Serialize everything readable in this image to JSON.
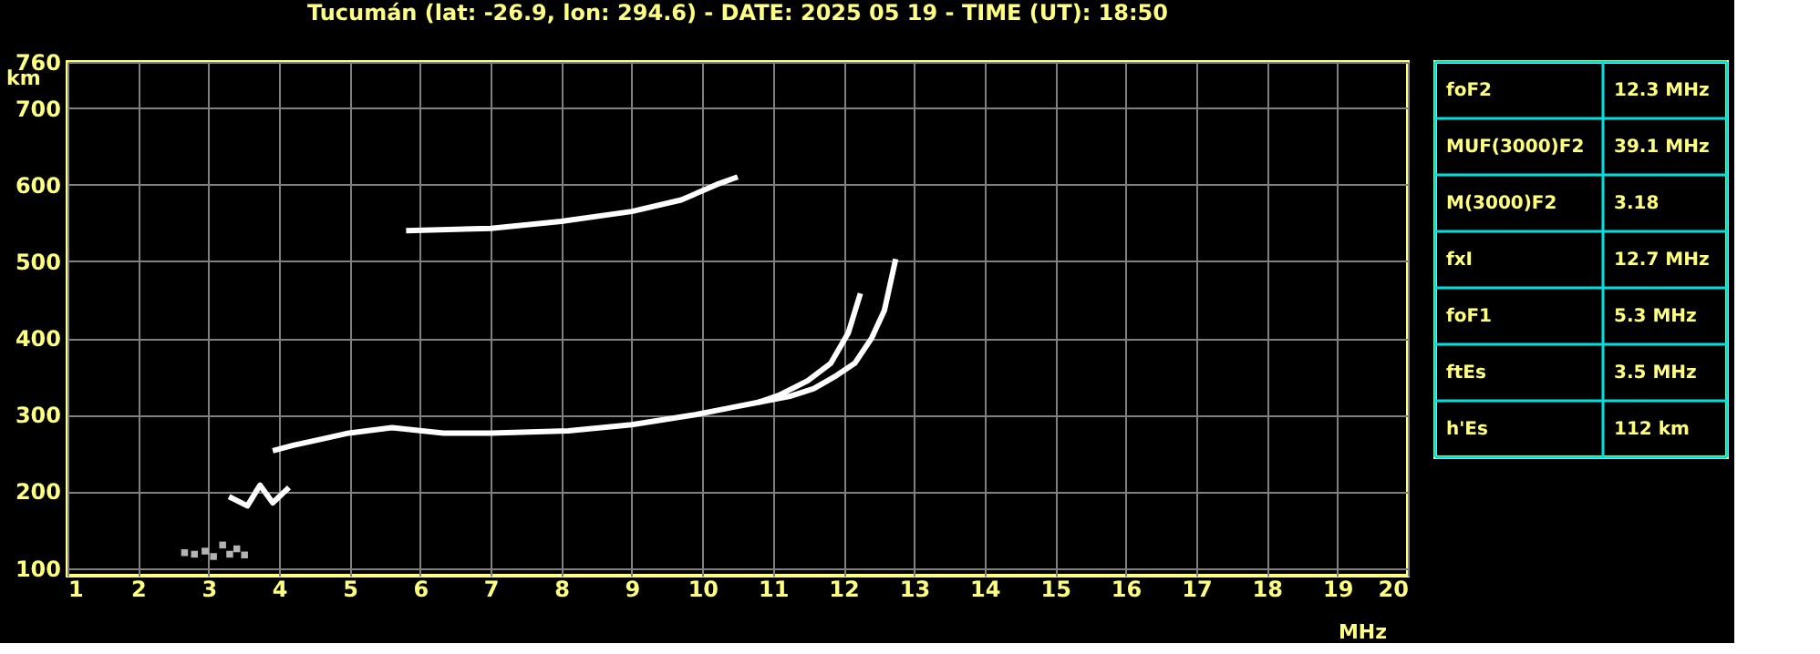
{
  "chart_data": [
    {
      "type": "line",
      "title": "Tucumán (lat: -26.9, lon: 294.6) - DATE: 2025 05 19 - TIME (UT): 18:50",
      "xlabel": "MHz",
      "ylabel": "km",
      "xlim": [
        1,
        20
      ],
      "xticks": [
        1,
        2,
        3,
        4,
        5,
        6,
        7,
        8,
        9,
        10,
        11,
        12,
        13,
        14,
        15,
        16,
        17,
        18,
        19,
        20
      ],
      "ylim": [
        90,
        760
      ],
      "yticks": [
        100,
        200,
        300,
        400,
        500,
        600,
        700,
        760
      ],
      "grid": true,
      "legend": false,
      "series": [
        {
          "type": "line",
          "color": "#ffffff",
          "x": [
            3.91,
            4.2,
            4.6,
            4.99,
            5.6,
            6.33,
            7.0,
            8.1,
            9.0,
            9.9,
            10.4,
            10.79,
            11.08,
            11.49,
            11.82,
            12.07,
            12.24
          ],
          "values": [
            253,
            260,
            268,
            276,
            283,
            276,
            276,
            279,
            287,
            300,
            309,
            316,
            325,
            344,
            367,
            407,
            458
          ]
        },
        {
          "type": "line",
          "color": "#ffffff",
          "x": [
            10.79,
            11.24,
            11.58,
            11.9,
            12.16,
            12.4,
            12.58,
            12.74
          ],
          "values": [
            316,
            324,
            334,
            351,
            367,
            400,
            436,
            503
          ]
        },
        {
          "type": "line",
          "color": "#ffffff",
          "x": [
            3.29,
            3.55,
            3.73,
            3.91,
            4.14
          ],
          "values": [
            193,
            181,
            208,
            185,
            205
          ]
        },
        {
          "type": "line",
          "color": "#ffffff",
          "x": [
            5.8,
            7.0,
            8.0,
            9.0,
            9.7,
            10.2,
            10.5
          ],
          "values": [
            540,
            543,
            552,
            565,
            580,
            600,
            610
          ]
        },
        {
          "type": "scatter",
          "color": "#ffffff",
          "marker": "square",
          "x": [
            2.66,
            2.8,
            2.95,
            3.07,
            3.2,
            3.3,
            3.4,
            3.51
          ],
          "values": [
            120,
            118,
            122,
            115,
            130,
            118,
            125,
            117
          ]
        }
      ]
    },
    {
      "type": "other",
      "annotations": [
        "foF2",
        "12.3 MHz",
        "MUF(3000)F2",
        "39.1 MHz",
        "M(3000)F2",
        "3.18",
        "fxI",
        "12.7 MHz",
        "foF1",
        "5.3 MHz",
        "ftEs",
        "3.5 MHz",
        "h'Es",
        "112 km"
      ]
    }
  ]
}
